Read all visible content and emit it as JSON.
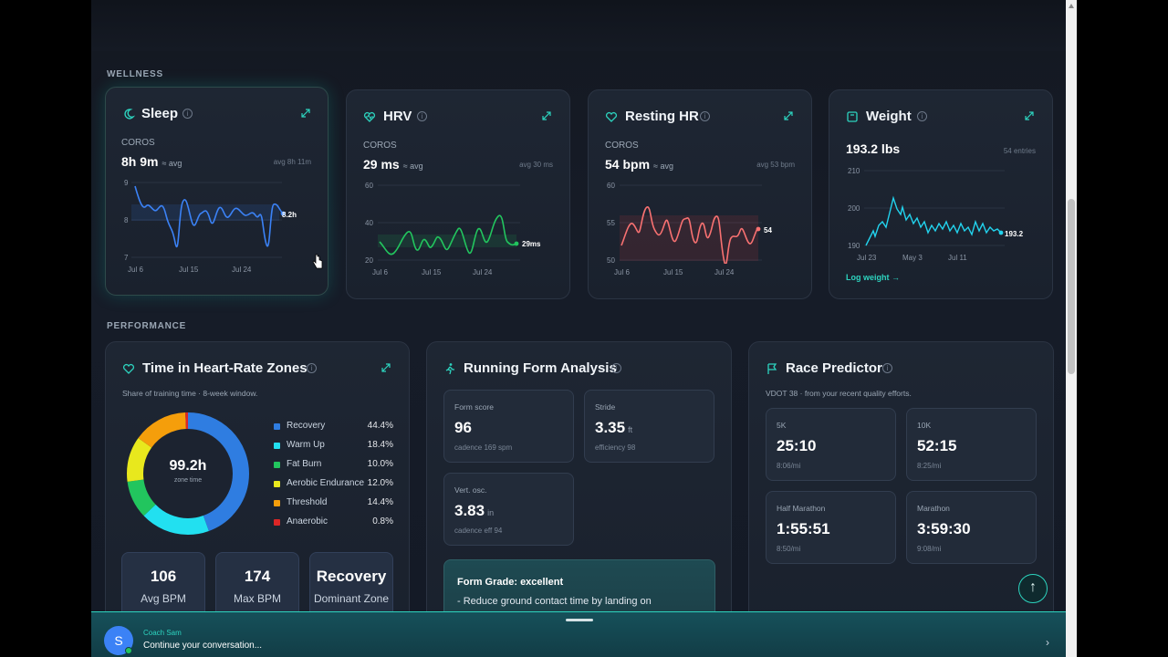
{
  "sections": {
    "wellness": "WELLNESS",
    "performance": "PERFORMANCE"
  },
  "sleep": {
    "title": "Sleep",
    "source": "COROS",
    "value": "8h 9m",
    "qualifier": "≈ avg",
    "avg": "avg 8h 11m",
    "y_ticks": [
      "9",
      "8",
      "7"
    ],
    "x_ticks": [
      "Jul 6",
      "Jul 15",
      "Jul 24"
    ],
    "end_label": "8.2h",
    "icon": "moon-icon",
    "color": "#3b82f6"
  },
  "hrv": {
    "title": "HRV",
    "source": "COROS",
    "value": "29 ms",
    "qualifier": "≈ avg",
    "avg": "avg 30 ms",
    "y_ticks": [
      "60",
      "40",
      "20"
    ],
    "x_ticks": [
      "Jul 6",
      "Jul 15",
      "Jul 24"
    ],
    "end_label": "29ms",
    "icon": "heart-pulse-icon",
    "color": "#22c55e"
  },
  "resting_hr": {
    "title": "Resting HR",
    "source": "COROS",
    "value": "54 bpm",
    "qualifier": "≈ avg",
    "avg": "avg 53 bpm",
    "y_ticks": [
      "60",
      "55",
      "50"
    ],
    "x_ticks": [
      "Jul 6",
      "Jul 15",
      "Jul 24"
    ],
    "end_label": "54",
    "icon": "heart-icon",
    "color": "#f87171"
  },
  "weight": {
    "title": "Weight",
    "value": "193.2 lbs",
    "entries": "54 entries",
    "y_ticks": [
      "210",
      "200",
      "190"
    ],
    "x_ticks": [
      "Jul 23",
      "May 3",
      "Jul 11"
    ],
    "end_label": "193.2",
    "link": "Log weight →",
    "icon": "scale-icon",
    "color": "#22d3ee"
  },
  "hr_zones": {
    "title": "Time in Heart-Rate Zones",
    "subtitle": "Share of training time · 8-week window.",
    "total": "99.2h",
    "total_label": "zone time",
    "zones": [
      {
        "label": "Recovery",
        "value": "44.4%",
        "pct": 44.4,
        "color": "#2f7de1"
      },
      {
        "label": "Warm Up",
        "value": "18.4%",
        "pct": 18.4,
        "color": "#22e0f0"
      },
      {
        "label": "Fat Burn",
        "value": "10.0%",
        "pct": 10.0,
        "color": "#22c55e"
      },
      {
        "label": "Aerobic Endurance",
        "value": "12.0%",
        "pct": 12.0,
        "color": "#e8e81d"
      },
      {
        "label": "Threshold",
        "value": "14.4%",
        "pct": 14.4,
        "color": "#f59e0b"
      },
      {
        "label": "Anaerobic",
        "value": "0.8%",
        "pct": 0.8,
        "color": "#dc2626"
      }
    ],
    "stats": [
      {
        "value": "106",
        "label": "Avg BPM"
      },
      {
        "value": "174",
        "label": "Max BPM"
      },
      {
        "value": "Recovery",
        "label": "Dominant Zone"
      }
    ]
  },
  "running_form": {
    "title": "Running Form Analysis",
    "form_score": {
      "label": "Form score",
      "value": "96",
      "sub": "cadence 169 spm"
    },
    "stride": {
      "label": "Stride",
      "value": "3.35",
      "unit": "ft",
      "sub": "efficiency 98"
    },
    "vert_osc": {
      "label": "Vert. osc.",
      "value": "3.83",
      "unit": "in",
      "sub": "cadence eff 94"
    },
    "grade_title": "Form Grade: excellent",
    "grade_body": "- Reduce ground contact time by landing on midfoot and quick cadence. - Minimize vertical bounce—focus on forward momentum, not up/down."
  },
  "race_predictor": {
    "title": "Race Predictor",
    "subtitle": "VDOT 38 · from your recent quality efforts.",
    "races": [
      {
        "name": "5K",
        "time": "25:10",
        "pace": "8:06/mi"
      },
      {
        "name": "10K",
        "time": "52:15",
        "pace": "8:25/mi"
      },
      {
        "name": "Half Marathon",
        "time": "1:55:51",
        "pace": "8:50/mi"
      },
      {
        "name": "Marathon",
        "time": "3:59:30",
        "pace": "9:08/mi"
      }
    ]
  },
  "chat": {
    "avatar": "S",
    "name": "Coach Sam",
    "message": "Continue your conversation...",
    "chevron": "›"
  },
  "fab": {
    "label": "↑"
  }
}
